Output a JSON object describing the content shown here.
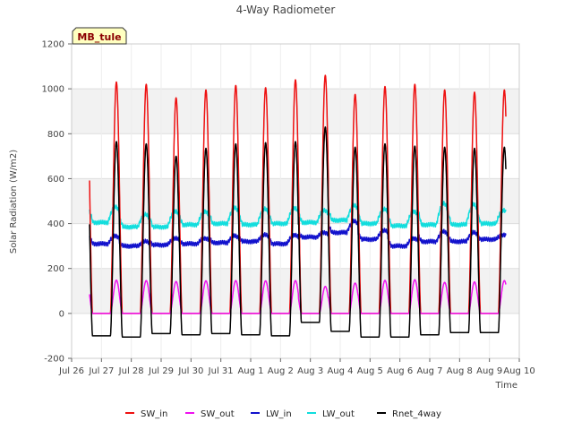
{
  "chart_data": {
    "type": "line",
    "title": "4-Way Radiometer",
    "xlabel": "Time",
    "ylabel": "Solar Radiation (W/m2)",
    "site_label": "MB_tule",
    "ylim": [
      -200,
      1200
    ],
    "yticks": [
      -200,
      0,
      200,
      400,
      600,
      800,
      1000,
      1200
    ],
    "xlim": [
      0,
      15
    ],
    "xtick_labels": [
      "Jul 26",
      "Jul 27",
      "Jul 28",
      "Jul 29",
      "Jul 30",
      "Jul 31",
      "Aug 1",
      "Aug 2",
      "Aug 3",
      "Aug 4",
      "Aug 5",
      "Aug 6",
      "Aug 7",
      "Aug 8",
      "Aug 9",
      "Aug 10"
    ],
    "grid": true,
    "legend_position": "bottom",
    "data_start_day": 0.6,
    "data_end_day": 14.55,
    "series": [
      {
        "name": "SW_in",
        "color": "#ee1111",
        "daily_peak": [
          1030,
          1020,
          960,
          995,
          1015,
          1005,
          1040,
          1060,
          975,
          1010,
          1020,
          995,
          985,
          995
        ]
      },
      {
        "name": "SW_out",
        "color": "#ee11ee",
        "daily_peak": [
          148,
          146,
          142,
          145,
          146,
          145,
          146,
          120,
          135,
          147,
          150,
          138,
          140,
          146
        ]
      },
      {
        "name": "LW_in",
        "color": "#1111cc",
        "daily_base": [
          310,
          300,
          305,
          310,
          315,
          320,
          310,
          340,
          360,
          330,
          300,
          320,
          320,
          330
        ],
        "daily_amp": [
          35,
          20,
          30,
          25,
          30,
          30,
          40,
          20,
          50,
          40,
          35,
          45,
          40,
          20
        ]
      },
      {
        "name": "LW_out",
        "color": "#11dddd",
        "daily_base": [
          405,
          385,
          385,
          395,
          400,
          395,
          400,
          405,
          415,
          400,
          390,
          395,
          395,
          400
        ],
        "daily_amp": [
          70,
          55,
          70,
          60,
          70,
          70,
          70,
          55,
          65,
          65,
          65,
          95,
          90,
          60
        ]
      },
      {
        "name": "Rnet_4way",
        "color": "#000000",
        "daily_peak": [
          765,
          755,
          700,
          735,
          755,
          760,
          765,
          830,
          740,
          755,
          745,
          740,
          735,
          740
        ],
        "night_value": [
          -100,
          -105,
          -90,
          -95,
          -90,
          -95,
          -100,
          -40,
          -80,
          -105,
          -105,
          -95,
          -85,
          -85
        ]
      }
    ]
  }
}
